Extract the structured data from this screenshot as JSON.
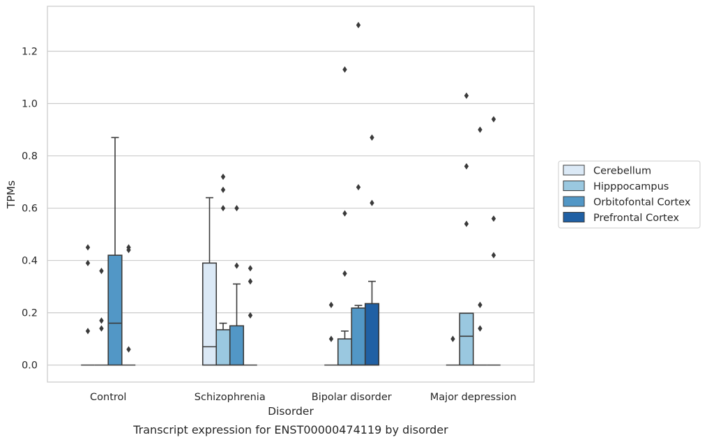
{
  "caption": "Transcript expression for ENST00000474119 by disorder",
  "chart_data": {
    "type": "box",
    "xlabel": "Disorder",
    "ylabel": "TPMs",
    "ylim": [
      -0.065,
      1.372
    ],
    "yticks": [
      "0.0",
      "0.2",
      "0.4",
      "0.6",
      "0.8",
      "1.0",
      "1.2"
    ],
    "grid": "horizontal",
    "legend_position": "right",
    "categories": [
      "Control",
      "Schizophrenia",
      "Bipolar disorder",
      "Major depression"
    ],
    "series": [
      {
        "name": "Cerebellum",
        "color": "#dbe9f6",
        "boxes": [
          {
            "q1": 0,
            "median": 0,
            "q3": 0,
            "whisker_low": 0,
            "whisker_high": 0,
            "fliers": [
              0.45,
              0.39,
              0.13
            ]
          },
          {
            "q1": 0,
            "median": 0.07,
            "q3": 0.39,
            "whisker_low": 0,
            "whisker_high": 0.64,
            "fliers": []
          },
          {
            "q1": 0,
            "median": 0,
            "q3": 0,
            "whisker_low": 0,
            "whisker_high": 0,
            "fliers": [
              0.23,
              0.1
            ]
          },
          {
            "q1": 0,
            "median": 0,
            "q3": 0,
            "whisker_low": 0,
            "whisker_high": 0,
            "fliers": [
              0.1
            ]
          }
        ]
      },
      {
        "name": "Hipppocampus",
        "color": "#9ac8e0",
        "boxes": [
          {
            "q1": 0,
            "median": 0,
            "q3": 0,
            "whisker_low": 0,
            "whisker_high": 0,
            "fliers": [
              0.36,
              0.17,
              0.14
            ]
          },
          {
            "q1": 0,
            "median": 0,
            "q3": 0.135,
            "whisker_low": 0,
            "whisker_high": 0.16,
            "fliers": [
              0.72,
              0.67,
              0.6
            ]
          },
          {
            "q1": 0,
            "median": 0,
            "q3": 0.1,
            "whisker_low": 0,
            "whisker_high": 0.13,
            "fliers": [
              1.13,
              0.58,
              0.35
            ]
          },
          {
            "q1": 0,
            "median": 0.11,
            "q3": 0.198,
            "whisker_low": 0,
            "whisker_high": 0.198,
            "fliers": [
              1.03,
              0.76,
              0.54
            ]
          }
        ]
      },
      {
        "name": "Orbitofontal Cortex",
        "color": "#5297c6",
        "boxes": [
          {
            "q1": 0,
            "median": 0.16,
            "q3": 0.42,
            "whisker_low": 0,
            "whisker_high": 0.87,
            "fliers": []
          },
          {
            "q1": 0,
            "median": 0,
            "q3": 0.15,
            "whisker_low": 0,
            "whisker_high": 0.31,
            "fliers": [
              0.6,
              0.38
            ]
          },
          {
            "q1": 0,
            "median": 0,
            "q3": 0.218,
            "whisker_low": 0,
            "whisker_high": 0.228,
            "fliers": [
              1.3,
              0.68
            ]
          },
          {
            "q1": 0,
            "median": 0,
            "q3": 0,
            "whisker_low": 0,
            "whisker_high": 0,
            "fliers": [
              0.9,
              0.23,
              0.14
            ]
          }
        ]
      },
      {
        "name": "Prefrontal Cortex",
        "color": "#2060a4",
        "boxes": [
          {
            "q1": 0,
            "median": 0,
            "q3": 0,
            "whisker_low": 0,
            "whisker_high": 0,
            "fliers": [
              0.45,
              0.44,
              0.06
            ]
          },
          {
            "q1": 0,
            "median": 0,
            "q3": 0,
            "whisker_low": 0,
            "whisker_high": 0,
            "fliers": [
              0.37,
              0.32,
              0.19
            ]
          },
          {
            "q1": 0,
            "median": 0,
            "q3": 0.235,
            "whisker_low": 0,
            "whisker_high": 0.32,
            "fliers": [
              0.87,
              0.62
            ]
          },
          {
            "q1": 0,
            "median": 0,
            "q3": 0,
            "whisker_low": 0,
            "whisker_high": 0,
            "fliers": [
              0.94,
              0.56,
              0.42
            ]
          }
        ]
      }
    ]
  }
}
